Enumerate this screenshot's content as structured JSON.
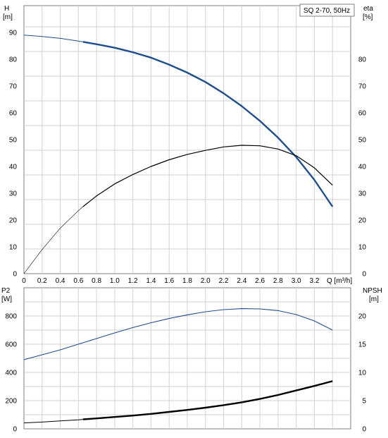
{
  "chart_data": [
    {
      "type": "line",
      "title": "SQ 2-70, 50Hz",
      "y_left_label": [
        "H",
        "[m]"
      ],
      "y_right_label": [
        "eta",
        "[%]"
      ],
      "xlabel": "Q [m³/h]",
      "xlim": [
        0,
        3.6
      ],
      "ylim_left": [
        0,
        100
      ],
      "ylim_right": [
        0,
        100
      ],
      "x_ticks": [
        "0",
        "0.2",
        "0.4",
        "0.6",
        "0.8",
        "1.0",
        "1.2",
        "1.4",
        "1.6",
        "1.8",
        "2.0",
        "2.2",
        "2.4",
        "2.6",
        "2.8",
        "3.0",
        "3.2"
      ],
      "y_left_ticks": [
        "0",
        "10",
        "20",
        "30",
        "40",
        "50",
        "60",
        "70",
        "80",
        "90"
      ],
      "y_right_ticks": [
        "0",
        "10",
        "20",
        "30",
        "40",
        "50",
        "60",
        "70",
        "80"
      ],
      "grid": true,
      "series": [
        {
          "name": "H",
          "axis": "left",
          "color": "#1f4e8c",
          "x": [
            0,
            0.2,
            0.4,
            0.6,
            0.65,
            0.8,
            1.0,
            1.2,
            1.4,
            1.6,
            1.8,
            2.0,
            2.2,
            2.4,
            2.6,
            2.8,
            3.0,
            3.2,
            3.4
          ],
          "y": [
            89,
            88.5,
            87.8,
            86.8,
            86.5,
            85.6,
            84.3,
            82.6,
            80.6,
            78,
            75,
            71.5,
            67.3,
            62.5,
            57,
            50.7,
            43.5,
            35,
            25
          ]
        },
        {
          "name": "eta",
          "axis": "right",
          "color": "#000000",
          "x": [
            0,
            0.2,
            0.4,
            0.6,
            0.65,
            0.8,
            1.0,
            1.2,
            1.4,
            1.6,
            1.8,
            2.0,
            2.2,
            2.4,
            2.6,
            2.8,
            3.0,
            3.2,
            3.4
          ],
          "y": [
            0,
            9,
            17,
            23.5,
            25,
            29,
            33.5,
            37,
            40,
            42.5,
            44.5,
            46,
            47.3,
            47.9,
            47.7,
            46.5,
            44,
            39.5,
            33
          ]
        }
      ]
    },
    {
      "type": "line",
      "y_left_label": [
        "P2",
        "[W]"
      ],
      "y_right_label": [
        "NPSH",
        "[m]"
      ],
      "xlim": [
        0,
        3.6
      ],
      "ylim_left": [
        0,
        1000
      ],
      "ylim_right": [
        0,
        25
      ],
      "y_left_ticks": [
        "0",
        "200",
        "400",
        "600",
        "800"
      ],
      "y_right_ticks": [
        "0",
        "5",
        "10",
        "15",
        "20"
      ],
      "grid": true,
      "series": [
        {
          "name": "P2",
          "axis": "left",
          "color": "#1f4e8c",
          "x": [
            0,
            0.2,
            0.4,
            0.6,
            0.8,
            1.0,
            1.2,
            1.4,
            1.6,
            1.8,
            2.0,
            2.2,
            2.4,
            2.6,
            2.8,
            3.0,
            3.2,
            3.4
          ],
          "y": [
            490,
            525,
            560,
            600,
            640,
            680,
            718,
            752,
            782,
            808,
            830,
            845,
            852,
            850,
            838,
            810,
            765,
            700
          ]
        },
        {
          "name": "NPSH",
          "axis": "right",
          "color": "#000000",
          "x": [
            0,
            0.2,
            0.4,
            0.6,
            0.65,
            0.8,
            1.0,
            1.2,
            1.4,
            1.6,
            1.8,
            2.0,
            2.2,
            2.4,
            2.6,
            2.8,
            3.0,
            3.2,
            3.4
          ],
          "y": [
            1.05,
            1.2,
            1.4,
            1.6,
            1.67,
            1.85,
            2.1,
            2.35,
            2.65,
            3.0,
            3.35,
            3.75,
            4.2,
            4.7,
            5.3,
            6.0,
            6.8,
            7.6,
            8.45
          ]
        }
      ]
    }
  ]
}
